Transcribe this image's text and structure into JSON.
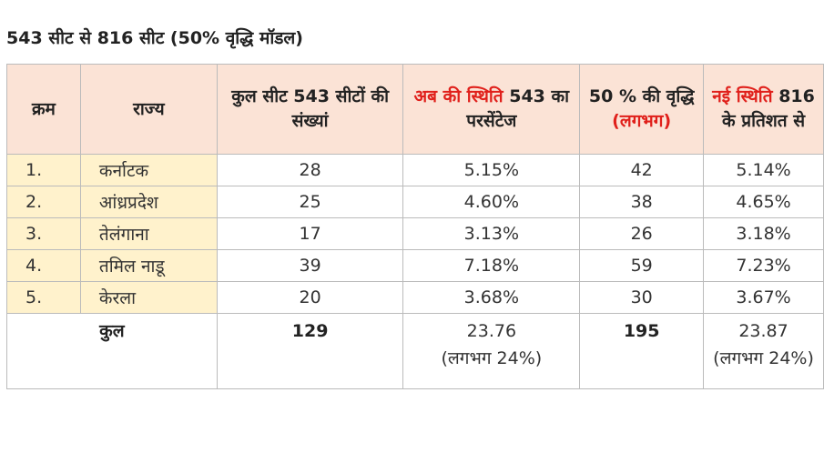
{
  "title": "543 सीट से 816 सीट (50% वृद्धि मॉडल)",
  "table": {
    "headers": [
      [
        {
          "text": "क्रम",
          "red": false
        }
      ],
      [
        {
          "text": "राज्य",
          "red": false
        }
      ],
      [
        {
          "text": "कुल सीट 543",
          "red": false
        },
        {
          "text": "सीटों की संख्यां",
          "red": false
        }
      ],
      [
        {
          "text": "अब की स्थिति",
          "red": true
        },
        {
          "text": "543",
          "red": false
        },
        {
          "text": "का परसेंटेज",
          "red": false
        }
      ],
      [
        {
          "text": "50 % की",
          "red": false
        },
        {
          "text": "वृद्धि",
          "red": false
        },
        {
          "text": "(लगभग)",
          "red": true
        }
      ],
      [
        {
          "text": "नई स्थिति",
          "red": true
        },
        {
          "text": "816 के",
          "red": false
        },
        {
          "text": "प्रतिशत से",
          "red": false
        }
      ]
    ],
    "rows": [
      [
        "1.",
        "कर्नाटक",
        "28",
        "5.15%",
        "42",
        "5.14%"
      ],
      [
        "2.",
        "आंध्रप्रदेश",
        "25",
        "4.60%",
        "38",
        "4.65%"
      ],
      [
        "3.",
        "तेलंगाना",
        "17",
        "3.13%",
        "26",
        "3.18%"
      ],
      [
        "4.",
        "तमिल नाडू",
        "39",
        "7.18%",
        "59",
        "7.23%"
      ],
      [
        "5.",
        "केरला",
        "20",
        "3.68%",
        "30",
        "3.67%"
      ]
    ],
    "total": {
      "label": "कुल",
      "seats": "129",
      "current_pct": "23.76",
      "current_approx": "(लगभग 24%)",
      "increase": "195",
      "new_pct": "23.87",
      "new_approx": "(लगभग 24%)"
    }
  }
}
